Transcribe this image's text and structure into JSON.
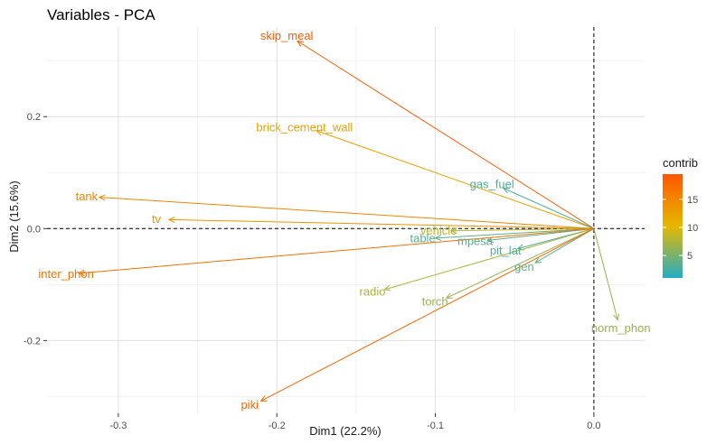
{
  "chart_data": {
    "type": "scatter",
    "subtype": "pca-variable-biplot",
    "title": "Variables - PCA",
    "xlabel": "Dim1 (22.2%)",
    "ylabel": "Dim2 (15.6%)",
    "xlim": [
      -0.345,
      0.032
    ],
    "ylim": [
      -0.33,
      0.36
    ],
    "x_ticks": [
      -0.3,
      -0.2,
      -0.1,
      0.0
    ],
    "x_tick_labels": [
      "-0.3",
      "-0.2",
      "-0.1",
      "0.0"
    ],
    "y_ticks": [
      -0.2,
      0.0,
      0.2
    ],
    "y_tick_labels": [
      "-0.2",
      "0.0",
      "0.2"
    ],
    "grid": true,
    "reference_lines": {
      "x": 0.0,
      "y": 0.0,
      "style": "dashed"
    },
    "legend": {
      "title": "contrib",
      "placement": "right",
      "type": "colorbar",
      "range": [
        1,
        19.5
      ],
      "ticks": [
        5,
        10,
        15
      ],
      "tick_labels": [
        "5",
        "10",
        "15"
      ],
      "colors": [
        "#24adc3",
        "#e6b800",
        "#ff5500"
      ]
    },
    "variables": [
      {
        "name": "skip_meal",
        "x": -0.187,
        "y": 0.335,
        "contrib": 19.0
      },
      {
        "name": "brick_cement_wall",
        "x": -0.175,
        "y": 0.175,
        "contrib": 12.5
      },
      {
        "name": "gas_fuel",
        "x": -0.057,
        "y": 0.072,
        "contrib": 3.0
      },
      {
        "name": "tank",
        "x": -0.312,
        "y": 0.056,
        "contrib": 15.0
      },
      {
        "name": "tv",
        "x": -0.268,
        "y": 0.016,
        "contrib": 13.5
      },
      {
        "name": "vehicle",
        "x": -0.09,
        "y": -0.004,
        "contrib": 8.0
      },
      {
        "name": "table",
        "x": -0.1,
        "y": -0.017,
        "contrib": 3.5
      },
      {
        "name": "mpesa",
        "x": -0.067,
        "y": -0.021,
        "contrib": 3.5
      },
      {
        "name": "pit_lat",
        "x": -0.048,
        "y": -0.036,
        "contrib": 3.0
      },
      {
        "name": "gen",
        "x": -0.037,
        "y": -0.061,
        "contrib": 4.0
      },
      {
        "name": "inter_phon",
        "x": -0.325,
        "y": -0.08,
        "contrib": 17.0
      },
      {
        "name": "radio",
        "x": -0.132,
        "y": -0.109,
        "contrib": 7.5
      },
      {
        "name": "torch",
        "x": -0.093,
        "y": -0.124,
        "contrib": 6.5
      },
      {
        "name": "norm_phon",
        "x": 0.015,
        "y": -0.163,
        "contrib": 6.5
      },
      {
        "name": "piki",
        "x": -0.21,
        "y": -0.308,
        "contrib": 18.0
      }
    ]
  }
}
